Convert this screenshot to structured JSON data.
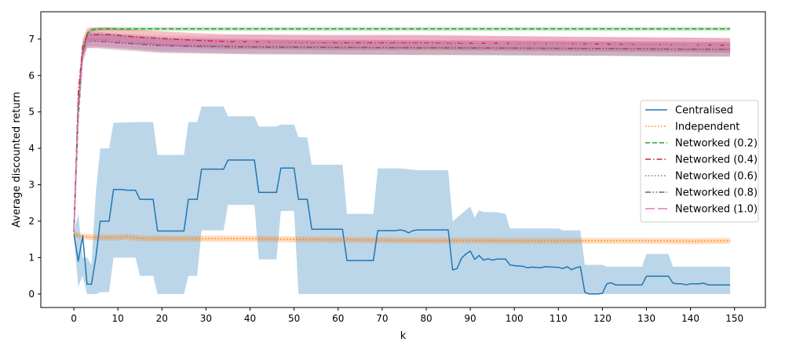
{
  "chart_data": {
    "type": "line",
    "title": "",
    "xlabel": "k",
    "ylabel": "Average discounted return",
    "xlim": [
      -7.5,
      157
    ],
    "ylim": [
      -0.37,
      7.75
    ],
    "xticks": [
      0,
      10,
      20,
      30,
      40,
      50,
      60,
      70,
      80,
      90,
      100,
      110,
      120,
      130,
      140,
      150
    ],
    "yticks": [
      0,
      1,
      2,
      3,
      4,
      5,
      6,
      7
    ],
    "grid": false,
    "legend_position": "center-right",
    "series": [
      {
        "name": "Centralised",
        "color": "#1f77b4",
        "dash": "solid",
        "points": [
          [
            0,
            1.65
          ],
          [
            1,
            0.9
          ],
          [
            2,
            1.6
          ],
          [
            3,
            0.27
          ],
          [
            4,
            0.27
          ],
          [
            5,
            1.0
          ],
          [
            6,
            2.0
          ],
          [
            8,
            2.0
          ],
          [
            9,
            2.87
          ],
          [
            11,
            2.87
          ],
          [
            12,
            2.85
          ],
          [
            14,
            2.85
          ],
          [
            15,
            2.6
          ],
          [
            18,
            2.6
          ],
          [
            19,
            1.73
          ],
          [
            25,
            1.73
          ],
          [
            26,
            2.6
          ],
          [
            28,
            2.6
          ],
          [
            29,
            3.43
          ],
          [
            34,
            3.43
          ],
          [
            35,
            3.68
          ],
          [
            41,
            3.68
          ],
          [
            42,
            2.79
          ],
          [
            46,
            2.79
          ],
          [
            47,
            3.46
          ],
          [
            50,
            3.46
          ],
          [
            51,
            2.6
          ],
          [
            53,
            2.6
          ],
          [
            54,
            1.78
          ],
          [
            61,
            1.78
          ],
          [
            62,
            0.92
          ],
          [
            68,
            0.92
          ],
          [
            69,
            1.74
          ],
          [
            73,
            1.74
          ],
          [
            74,
            1.76
          ],
          [
            75,
            1.74
          ],
          [
            76,
            1.68
          ],
          [
            77,
            1.74
          ],
          [
            78,
            1.76
          ],
          [
            85,
            1.76
          ],
          [
            86,
            0.66
          ],
          [
            87,
            0.7
          ],
          [
            88,
            0.98
          ],
          [
            89,
            1.1
          ],
          [
            90,
            1.18
          ],
          [
            91,
            0.95
          ],
          [
            92,
            1.06
          ],
          [
            93,
            0.93
          ],
          [
            94,
            0.97
          ],
          [
            95,
            0.93
          ],
          [
            96,
            0.96
          ],
          [
            98,
            0.96
          ],
          [
            99,
            0.8
          ],
          [
            100,
            0.78
          ],
          [
            102,
            0.76
          ],
          [
            103,
            0.72
          ],
          [
            104,
            0.74
          ],
          [
            106,
            0.72
          ],
          [
            107,
            0.75
          ],
          [
            110,
            0.73
          ],
          [
            111,
            0.7
          ],
          [
            112,
            0.75
          ],
          [
            113,
            0.67
          ],
          [
            114,
            0.72
          ],
          [
            115,
            0.75
          ],
          [
            116,
            0.05
          ],
          [
            117,
            0.0
          ],
          [
            119,
            0.0
          ],
          [
            120,
            0.02
          ],
          [
            121,
            0.28
          ],
          [
            122,
            0.31
          ],
          [
            123,
            0.25
          ],
          [
            129,
            0.25
          ],
          [
            130,
            0.49
          ],
          [
            135,
            0.49
          ],
          [
            136,
            0.3
          ],
          [
            137,
            0.28
          ],
          [
            138,
            0.28
          ],
          [
            139,
            0.25
          ],
          [
            140,
            0.28
          ],
          [
            142,
            0.28
          ],
          [
            143,
            0.3
          ],
          [
            144,
            0.25
          ],
          [
            149,
            0.25
          ]
        ],
        "band": [
          [
            0,
            1.7,
            1.6
          ],
          [
            1,
            2.2,
            0.2
          ],
          [
            2,
            1.0,
            0.5
          ],
          [
            3,
            1.0,
            0.0
          ],
          [
            4,
            0.8,
            0.0
          ],
          [
            5,
            2.8,
            0.0
          ],
          [
            6,
            4.0,
            0.05
          ],
          [
            8,
            4.0,
            0.05
          ],
          [
            9,
            4.7,
            1.0
          ],
          [
            14,
            4.72,
            1.0
          ],
          [
            15,
            4.72,
            0.5
          ],
          [
            18,
            4.72,
            0.5
          ],
          [
            19,
            3.82,
            0.0
          ],
          [
            25,
            3.82,
            0.0
          ],
          [
            26,
            4.72,
            0.5
          ],
          [
            28,
            4.72,
            0.5
          ],
          [
            29,
            5.15,
            1.75
          ],
          [
            34,
            5.15,
            1.75
          ],
          [
            35,
            4.88,
            2.45
          ],
          [
            41,
            4.88,
            2.45
          ],
          [
            42,
            4.6,
            0.95
          ],
          [
            46,
            4.6,
            0.95
          ],
          [
            47,
            4.65,
            2.28
          ],
          [
            50,
            4.65,
            2.28
          ],
          [
            51,
            4.3,
            0.0
          ],
          [
            53,
            4.3,
            0.0
          ],
          [
            54,
            3.55,
            0.0
          ],
          [
            61,
            3.55,
            0.0
          ],
          [
            62,
            2.2,
            0.0
          ],
          [
            68,
            2.2,
            0.0
          ],
          [
            69,
            3.45,
            0.0
          ],
          [
            73,
            3.45,
            0.0
          ],
          [
            74,
            3.45,
            0.0
          ],
          [
            78,
            3.4,
            0.0
          ],
          [
            85,
            3.4,
            0.0
          ],
          [
            86,
            2.0,
            0.0
          ],
          [
            87,
            2.1,
            0.0
          ],
          [
            89,
            2.3,
            0.0
          ],
          [
            90,
            2.4,
            0.0
          ],
          [
            91,
            2.1,
            0.0
          ],
          [
            92,
            2.3,
            0.0
          ],
          [
            93,
            2.25,
            0.0
          ],
          [
            96,
            2.25,
            0.0
          ],
          [
            98,
            2.2,
            0.0
          ],
          [
            99,
            1.8,
            0.0
          ],
          [
            110,
            1.8,
            0.0
          ],
          [
            111,
            1.75,
            0.0
          ],
          [
            115,
            1.75,
            0.0
          ],
          [
            116,
            0.8,
            0.0
          ],
          [
            120,
            0.8,
            0.0
          ],
          [
            121,
            0.75,
            0.0
          ],
          [
            129,
            0.75,
            0.0
          ],
          [
            130,
            1.1,
            0.0
          ],
          [
            135,
            1.1,
            0.0
          ],
          [
            136,
            0.75,
            0.0
          ],
          [
            149,
            0.75,
            0.0
          ]
        ]
      },
      {
        "name": "Independent",
        "color": "#ff7f0e",
        "dash": "dotted",
        "points": [
          [
            0,
            1.65
          ],
          [
            1,
            1.6
          ],
          [
            3,
            1.57
          ],
          [
            5,
            1.55
          ],
          [
            10,
            1.55
          ],
          [
            12,
            1.57
          ],
          [
            15,
            1.53
          ],
          [
            20,
            1.52
          ],
          [
            30,
            1.52
          ],
          [
            40,
            1.52
          ],
          [
            50,
            1.5
          ],
          [
            60,
            1.49
          ],
          [
            70,
            1.48
          ],
          [
            80,
            1.47
          ],
          [
            90,
            1.47
          ],
          [
            100,
            1.46
          ],
          [
            110,
            1.46
          ],
          [
            120,
            1.46
          ],
          [
            130,
            1.46
          ],
          [
            140,
            1.45
          ],
          [
            149,
            1.46
          ]
        ],
        "band_width": 0.08
      },
      {
        "name": "Networked (0.2)",
        "color": "#2ca02c",
        "dash": "dashed",
        "points": [
          [
            0,
            1.7
          ],
          [
            1,
            4.8
          ],
          [
            2,
            6.6
          ],
          [
            3,
            7.15
          ],
          [
            4,
            7.25
          ],
          [
            5,
            7.27
          ],
          [
            7,
            7.28
          ],
          [
            20,
            7.28
          ],
          [
            60,
            7.28
          ],
          [
            100,
            7.28
          ],
          [
            149,
            7.28
          ]
        ],
        "band_width": 0.05
      },
      {
        "name": "Networked (0.4)",
        "color": "#d62728",
        "dash": "dashdot",
        "points": [
          [
            0,
            1.7
          ],
          [
            1,
            5.5
          ],
          [
            2,
            6.8
          ],
          [
            3,
            7.1
          ],
          [
            4,
            7.12
          ],
          [
            8,
            7.12
          ],
          [
            15,
            7.05
          ],
          [
            25,
            6.98
          ],
          [
            35,
            6.93
          ],
          [
            45,
            6.92
          ],
          [
            60,
            6.9
          ],
          [
            80,
            6.9
          ],
          [
            100,
            6.88
          ],
          [
            120,
            6.86
          ],
          [
            140,
            6.84
          ],
          [
            149,
            6.83
          ]
        ],
        "band_width": 0.2
      },
      {
        "name": "Networked (0.6)",
        "color": "#9467bd",
        "dash": "dotted",
        "points": [
          [
            0,
            1.7
          ],
          [
            1,
            5.3
          ],
          [
            2,
            6.7
          ],
          [
            3,
            7.0
          ],
          [
            5,
            7.0
          ],
          [
            10,
            6.95
          ],
          [
            20,
            6.85
          ],
          [
            30,
            6.82
          ],
          [
            40,
            6.8
          ],
          [
            60,
            6.78
          ],
          [
            80,
            6.77
          ],
          [
            100,
            6.76
          ],
          [
            120,
            6.74
          ],
          [
            140,
            6.72
          ],
          [
            149,
            6.72
          ]
        ],
        "band_width": 0.2
      },
      {
        "name": "Networked (0.8)",
        "color": "#8c564b",
        "dash": "dashdotdot",
        "points": [
          [
            0,
            1.7
          ],
          [
            1,
            5.2
          ],
          [
            2,
            6.6
          ],
          [
            3,
            6.95
          ],
          [
            5,
            6.95
          ],
          [
            10,
            6.9
          ],
          [
            20,
            6.82
          ],
          [
            30,
            6.8
          ],
          [
            40,
            6.78
          ],
          [
            60,
            6.77
          ],
          [
            80,
            6.76
          ],
          [
            100,
            6.75
          ],
          [
            120,
            6.74
          ],
          [
            140,
            6.72
          ],
          [
            149,
            6.72
          ]
        ],
        "band_width": 0.2
      },
      {
        "name": "Networked (1.0)",
        "color": "#e377c2",
        "dash": "longdash",
        "points": [
          [
            0,
            1.7
          ],
          [
            1,
            5.0
          ],
          [
            2,
            6.5
          ],
          [
            3,
            6.95
          ],
          [
            5,
            6.97
          ],
          [
            10,
            6.95
          ],
          [
            20,
            6.9
          ],
          [
            30,
            6.9
          ],
          [
            40,
            6.92
          ],
          [
            60,
            6.92
          ],
          [
            80,
            6.92
          ],
          [
            100,
            6.88
          ],
          [
            120,
            6.85
          ],
          [
            140,
            6.84
          ],
          [
            149,
            6.82
          ]
        ],
        "band_width": 0.2
      }
    ]
  }
}
